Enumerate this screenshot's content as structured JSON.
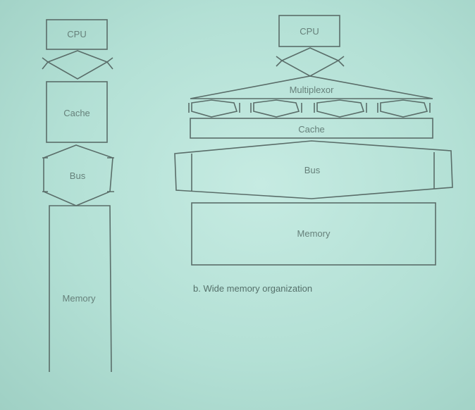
{
  "diagram_a": {
    "cpu": "CPU",
    "cache": "Cache",
    "bus": "Bus",
    "memory": "Memory"
  },
  "diagram_b": {
    "cpu": "CPU",
    "multiplexor": "Multiplexor",
    "cache": "Cache",
    "bus": "Bus",
    "memory": "Memory",
    "caption": "b. Wide memory organization"
  },
  "colors": {
    "background": "#b3e0d5",
    "line": "#5a6d69",
    "text": "#66807a"
  }
}
